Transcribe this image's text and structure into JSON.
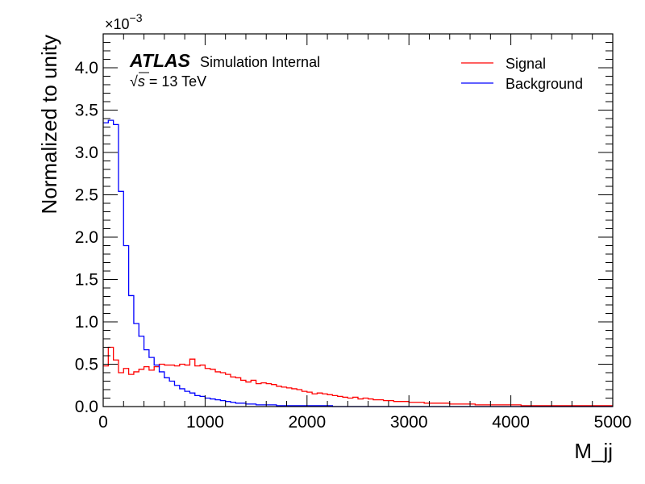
{
  "chart_data": {
    "type": "histogram",
    "xlabel": "M_jj",
    "ylabel": "Normalized to unity",
    "xlim": [
      0,
      5000
    ],
    "ylim": [
      0,
      0.0044
    ],
    "y_multiplier_base": "×10",
    "y_multiplier_exp": "−3",
    "x_ticks": [
      0,
      1000,
      2000,
      3000,
      4000,
      5000
    ],
    "y_ticks": [
      0.0,
      0.5,
      1.0,
      1.5,
      2.0,
      2.5,
      3.0,
      3.5,
      4.0
    ],
    "y_tick_labels": [
      "0.0",
      "0.5",
      "1.0",
      "1.5",
      "2.0",
      "2.5",
      "3.0",
      "3.5",
      "4.0"
    ],
    "grid": false,
    "legend_position": "top-right",
    "bin_edges_start": 0,
    "bin_width": 50,
    "series": [
      {
        "name": "Signal",
        "color": "#ff0000",
        "values": [
          0.00048,
          0.0007,
          0.00055,
          0.0004,
          0.00045,
          0.00038,
          0.00041,
          0.00044,
          0.00047,
          0.00043,
          0.00047,
          0.0005,
          0.00049,
          0.00049,
          0.00048,
          0.0005,
          0.00049,
          0.00056,
          0.00048,
          0.00049,
          0.00045,
          0.00044,
          0.00041,
          0.0004,
          0.00038,
          0.00035,
          0.00034,
          0.00031,
          0.00029,
          0.00031,
          0.00027,
          0.00028,
          0.00027,
          0.00026,
          0.00024,
          0.00023,
          0.00022,
          0.00021,
          0.0002,
          0.00018,
          0.00017,
          0.00015,
          0.00016,
          0.00015,
          0.00014,
          0.00013,
          0.00012,
          0.00011,
          0.0001,
          0.00011,
          9e-05,
          0.0001,
          9e-05,
          8e-05,
          8e-05,
          7e-05,
          7e-05,
          6e-05,
          6e-05,
          6e-05,
          5e-05,
          5e-05,
          5e-05,
          4e-05,
          4e-05,
          4e-05,
          4e-05,
          4e-05,
          3e-05,
          3e-05,
          3e-05,
          3e-05,
          3e-05,
          2e-05,
          2e-05,
          2e-05,
          2e-05,
          2e-05,
          2e-05,
          2e-05,
          2e-05,
          2e-05,
          1e-05,
          1e-05,
          1e-05,
          1e-05,
          1e-05,
          1e-05,
          1e-05,
          1e-05,
          1e-05,
          1e-05,
          1e-05,
          1e-05,
          1e-05,
          1e-05,
          1e-05,
          1e-05,
          1e-05,
          1e-05
        ]
      },
      {
        "name": "Background",
        "color": "#0000ff",
        "values": [
          0.00335,
          0.00338,
          0.00333,
          0.00254,
          0.0019,
          0.00131,
          0.00098,
          0.00083,
          0.00067,
          0.00058,
          0.00049,
          0.00041,
          0.00034,
          0.0003,
          0.00025,
          0.00021,
          0.00018,
          0.00016,
          0.00013,
          0.00012,
          0.0001,
          9e-05,
          8e-05,
          7e-05,
          6e-05,
          5e-05,
          4e-05,
          4e-05,
          3e-05,
          3e-05,
          2e-05,
          2e-05,
          2e-05,
          2e-05,
          1e-05,
          1e-05,
          1e-05,
          1e-05,
          1e-05,
          1e-05,
          1e-05,
          1e-05,
          1e-05,
          1e-05,
          1e-05,
          0,
          0,
          0,
          0,
          0,
          0,
          0,
          0,
          0,
          0,
          0,
          0,
          0,
          0,
          0,
          0,
          0,
          0,
          0,
          0,
          0,
          0,
          0,
          0,
          0,
          0,
          0,
          0,
          0,
          0,
          0,
          0,
          0,
          0,
          0,
          0,
          0,
          0,
          0,
          0,
          0,
          0,
          0,
          0,
          0,
          0,
          0,
          0,
          0,
          0,
          0,
          0,
          0,
          0,
          0
        ]
      }
    ],
    "annotations": {
      "experiment": "ATLAS",
      "label": "Simulation Internal",
      "energy_sqrt": "√",
      "energy_var": "s",
      "energy_value": " = 13 TeV"
    }
  }
}
